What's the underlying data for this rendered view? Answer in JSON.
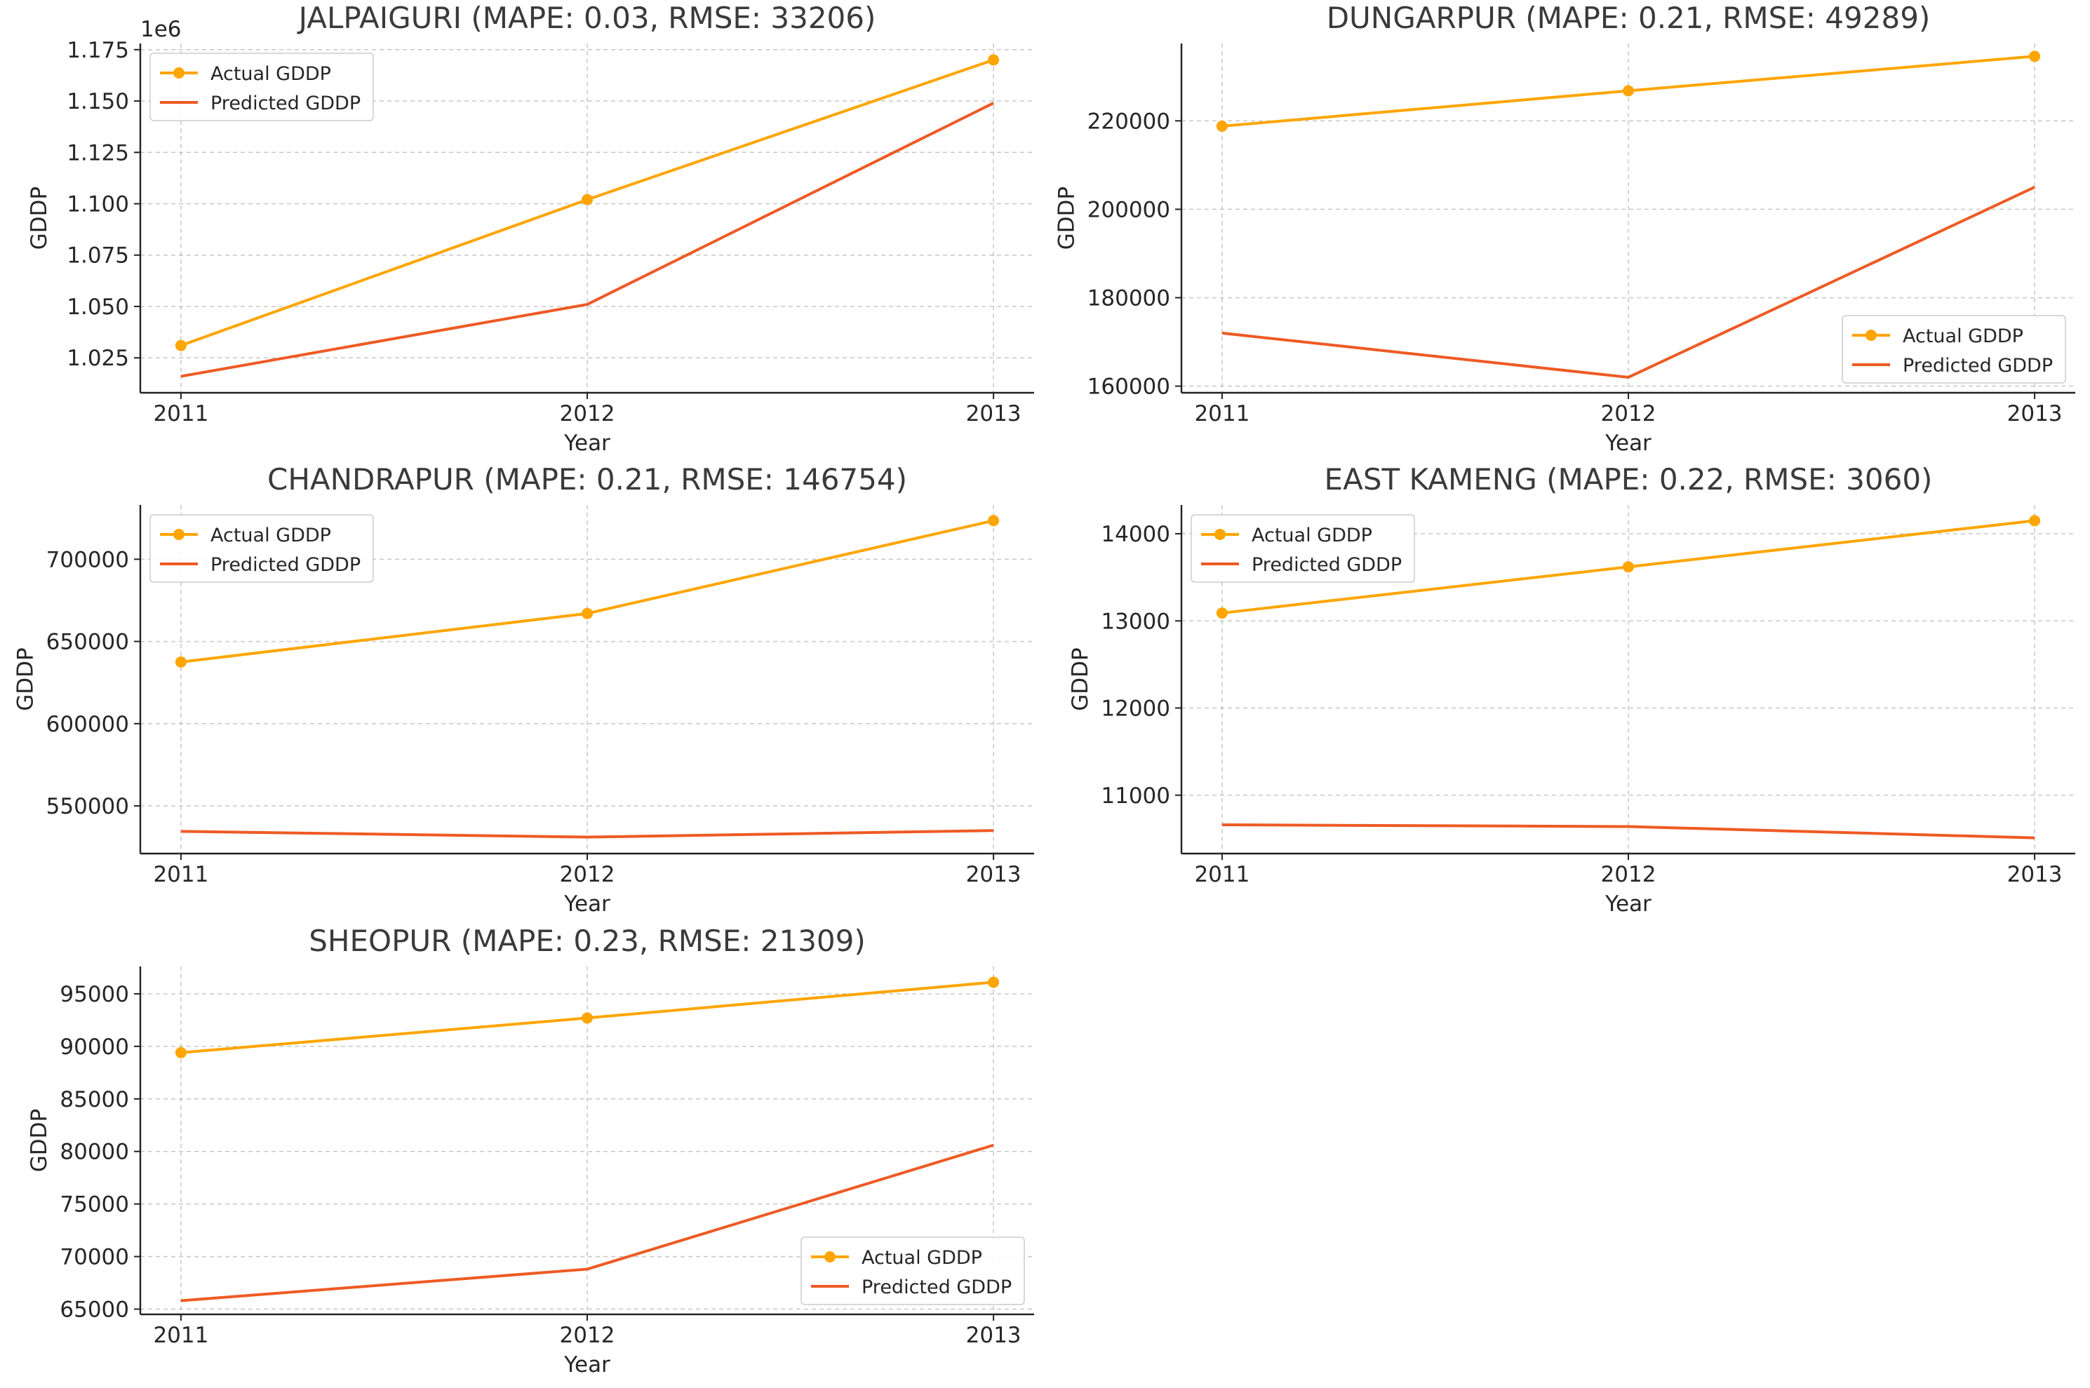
{
  "figure": {
    "colors": {
      "actual": "#FFA500",
      "predicted": "#EE5A24",
      "axis": "#222222",
      "grid": "#b0b0b0",
      "text": "#262626",
      "title": "#3a3a3a"
    }
  },
  "chart_data": [
    {
      "type": "line",
      "title": "JALPAIGURI (MAPE: 0.03, RMSE: 33206)",
      "xlabel": "Year",
      "ylabel": "GDDP",
      "x": [
        2011,
        2012,
        2013
      ],
      "x_tick_labels": [
        "2011",
        "2012",
        "2013"
      ],
      "ylim": [
        1008000,
        1178000
      ],
      "y_ticks": [
        1.025,
        1.05,
        1.075,
        1.1,
        1.125,
        1.15,
        1.175
      ],
      "y_tick_labels": [
        "1.025",
        "1.050",
        "1.075",
        "1.100",
        "1.125",
        "1.150",
        "1.175"
      ],
      "y_scale_factor": 1000000,
      "offset_text": "1e6",
      "series": [
        {
          "name": "Actual GDDP",
          "values": [
            1031000,
            1102000,
            1170000
          ],
          "markers": true
        },
        {
          "name": "Predicted GDDP",
          "values": [
            1016000,
            1051000,
            1149000
          ],
          "markers": false
        }
      ],
      "legend": "upper left",
      "grid": true
    },
    {
      "type": "line",
      "title": "DUNGARPUR (MAPE: 0.21, RMSE: 49289)",
      "xlabel": "Year",
      "ylabel": "GDDP",
      "x": [
        2011,
        2012,
        2013
      ],
      "x_tick_labels": [
        "2011",
        "2012",
        "2013"
      ],
      "ylim": [
        158500,
        237500
      ],
      "y_ticks": [
        160000,
        180000,
        200000,
        220000
      ],
      "y_tick_labels": [
        "160000",
        "180000",
        "200000",
        "220000"
      ],
      "y_scale_factor": 1,
      "offset_text": "",
      "series": [
        {
          "name": "Actual GDDP",
          "values": [
            218800,
            226800,
            234600
          ],
          "markers": true
        },
        {
          "name": "Predicted GDDP",
          "values": [
            172000,
            162000,
            205000
          ],
          "markers": false
        }
      ],
      "legend": "lower right",
      "grid": true
    },
    {
      "type": "line",
      "title": "CHANDRAPUR (MAPE: 0.21, RMSE: 146754)",
      "xlabel": "Year",
      "ylabel": "GDDP",
      "x": [
        2011,
        2012,
        2013
      ],
      "x_tick_labels": [
        "2011",
        "2012",
        "2013"
      ],
      "ylim": [
        521000,
        733000
      ],
      "y_ticks": [
        550000,
        600000,
        650000,
        700000
      ],
      "y_tick_labels": [
        "550000",
        "600000",
        "650000",
        "700000"
      ],
      "y_scale_factor": 1,
      "offset_text": "",
      "series": [
        {
          "name": "Actual GDDP",
          "values": [
            637500,
            667000,
            723500
          ],
          "markers": true
        },
        {
          "name": "Predicted GDDP",
          "values": [
            534500,
            531000,
            535000
          ],
          "markers": false
        }
      ],
      "legend": "upper left",
      "grid": true
    },
    {
      "type": "line",
      "title": "EAST KAMENG (MAPE: 0.22, RMSE: 3060)",
      "xlabel": "Year",
      "ylabel": "GDDP",
      "x": [
        2011,
        2012,
        2013
      ],
      "x_tick_labels": [
        "2011",
        "2012",
        "2013"
      ],
      "ylim": [
        10330,
        14330
      ],
      "y_ticks": [
        11000,
        12000,
        13000,
        14000
      ],
      "y_tick_labels": [
        "11000",
        "12000",
        "13000",
        "14000"
      ],
      "y_scale_factor": 1,
      "offset_text": "",
      "series": [
        {
          "name": "Actual GDDP",
          "values": [
            13090,
            13620,
            14150
          ],
          "markers": true
        },
        {
          "name": "Predicted GDDP",
          "values": [
            10660,
            10640,
            10510
          ],
          "markers": false
        }
      ],
      "legend": "upper left",
      "grid": true
    },
    {
      "type": "line",
      "title": "SHEOPUR (MAPE: 0.23, RMSE: 21309)",
      "xlabel": "Year",
      "ylabel": "GDDP",
      "x": [
        2011,
        2012,
        2013
      ],
      "x_tick_labels": [
        "2011",
        "2012",
        "2013"
      ],
      "ylim": [
        64500,
        97600
      ],
      "y_ticks": [
        65000,
        70000,
        75000,
        80000,
        85000,
        90000,
        95000
      ],
      "y_tick_labels": [
        "65000",
        "70000",
        "75000",
        "80000",
        "85000",
        "90000",
        "95000"
      ],
      "y_scale_factor": 1,
      "offset_text": "",
      "series": [
        {
          "name": "Actual GDDP",
          "values": [
            89400,
            92700,
            96100
          ],
          "markers": true
        },
        {
          "name": "Predicted GDDP",
          "values": [
            65800,
            68800,
            80600
          ],
          "markers": false
        }
      ],
      "legend": "lower right",
      "grid": true
    }
  ]
}
